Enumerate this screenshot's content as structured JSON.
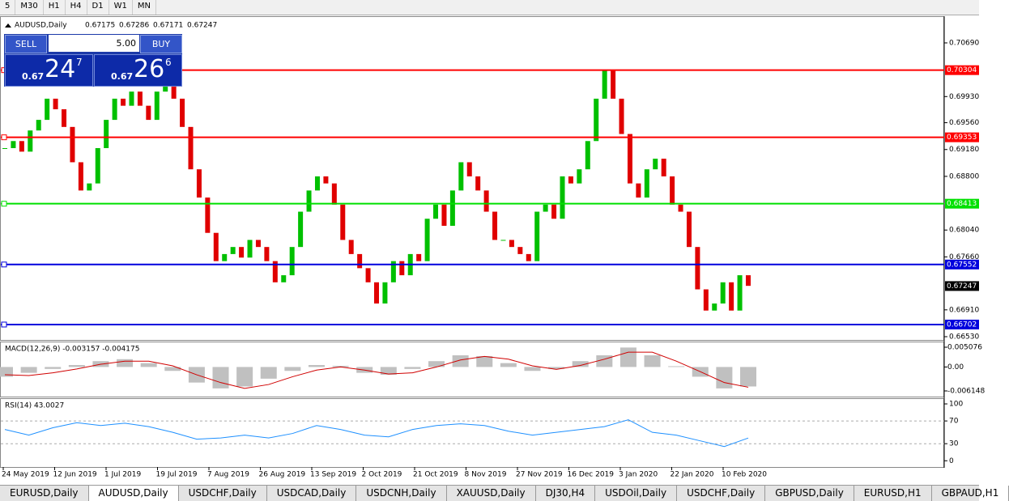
{
  "toolbar": {
    "timeframes": [
      "5",
      "M30",
      "H1",
      "H4",
      "D1",
      "W1",
      "MN"
    ]
  },
  "chart": {
    "symbol": "AUDUSD,Daily",
    "ohlc": [
      0.67175,
      0.67286,
      0.67171,
      0.67247
    ],
    "ylim": [
      0.66484,
      0.71068
    ],
    "ticks": [
      {
        "value": 0.7069,
        "label": "0.70690"
      },
      {
        "value": 0.6993,
        "label": "0.69930"
      },
      {
        "value": 0.6956,
        "label": "0.69560"
      },
      {
        "value": 0.6918,
        "label": "0.69180"
      },
      {
        "value": 0.688,
        "label": "0.68800"
      },
      {
        "value": 0.6804,
        "label": "0.68040"
      },
      {
        "value": 0.6766,
        "label": "0.67660"
      },
      {
        "value": 0.6691,
        "label": "0.66910"
      },
      {
        "value": 0.6653,
        "label": "0.66530"
      }
    ],
    "levels": [
      {
        "value": 0.70304,
        "color": "#ff0000"
      },
      {
        "value": 0.69353,
        "color": "#ff0000"
      },
      {
        "value": 0.68413,
        "color": "#00e000"
      },
      {
        "value": 0.67552,
        "color": "#0000dd"
      },
      {
        "value": 0.66702,
        "color": "#0000dd"
      }
    ],
    "current_price": 0.67247,
    "closes": [
      0.692,
      0.693,
      0.6915,
      0.6945,
      0.696,
      0.699,
      0.6975,
      0.695,
      0.69,
      0.686,
      0.687,
      0.692,
      0.696,
      0.699,
      0.698,
      0.7,
      0.698,
      0.696,
      0.7,
      0.701,
      0.699,
      0.695,
      0.689,
      0.685,
      0.68,
      0.676,
      0.677,
      0.678,
      0.6765,
      0.679,
      0.678,
      0.676,
      0.673,
      0.674,
      0.678,
      0.683,
      0.686,
      0.688,
      0.687,
      0.684,
      0.679,
      0.677,
      0.675,
      0.673,
      0.67,
      0.673,
      0.676,
      0.674,
      0.677,
      0.676,
      0.682,
      0.684,
      0.681,
      0.686,
      0.69,
      0.688,
      0.686,
      0.683,
      0.679,
      0.679,
      0.678,
      0.677,
      0.676,
      0.683,
      0.684,
      0.682,
      0.688,
      0.687,
      0.689,
      0.693,
      0.699,
      0.703,
      0.699,
      0.694,
      0.687,
      0.685,
      0.689,
      0.6905,
      0.688,
      0.684,
      0.683,
      0.678,
      0.672,
      0.669,
      0.67,
      0.673,
      0.669,
      0.674,
      0.6725
    ],
    "dates": [
      "24 May 2019",
      "12 Jun 2019",
      "1 Jul 2019",
      "19 Jul 2019",
      "7 Aug 2019",
      "26 Aug 2019",
      "13 Sep 2019",
      "2 Oct 2019",
      "21 Oct 2019",
      "8 Nov 2019",
      "27 Nov 2019",
      "16 Dec 2019",
      "3 Jan 2020",
      "22 Jan 2020",
      "10 Feb 2020"
    ]
  },
  "trade_panel": {
    "sell": "SELL",
    "lot": "5.00",
    "buy": "BUY",
    "bid": {
      "big": "0.67",
      "main": "24",
      "pip": "7"
    },
    "ask": {
      "big": "0.67",
      "main": "26",
      "pip": "6"
    }
  },
  "macd": {
    "label": "MACD(12,26,9) -0.003157 -0.004175",
    "ylim": [
      -0.007603,
      0.006531
    ],
    "ticks": [
      0.005076,
      {
        "value": 0,
        "label": "0.00"
      },
      -0.006148
    ],
    "histogram": [
      -0.0025,
      -0.0015,
      -0.0005,
      0.0005,
      0.0015,
      0.002,
      0.001,
      -0.001,
      -0.004,
      -0.0055,
      -0.005,
      -0.003,
      -0.001,
      0.0005,
      0.0003,
      -0.0015,
      -0.002,
      -0.0005,
      0.0015,
      0.003,
      0.0028,
      0.001,
      -0.001,
      -0.0005,
      0.0015,
      0.003,
      0.005,
      0.003,
      0.0002,
      -0.0025,
      -0.0055,
      -0.005
    ],
    "signal": [
      -0.002,
      -0.0022,
      -0.0015,
      -0.0005,
      0.0007,
      0.0015,
      0.0015,
      0.0003,
      -0.002,
      -0.004,
      -0.0055,
      -0.0045,
      -0.0025,
      -0.0008,
      0,
      -0.0008,
      -0.0018,
      -0.0015,
      0,
      0.0018,
      0.0027,
      0.002,
      0.0003,
      -0.0006,
      0.0004,
      0.002,
      0.0038,
      0.0038,
      0.0015,
      -0.0012,
      -0.004,
      -0.0052
    ]
  },
  "rsi": {
    "label": "RSI(14) 43.0027",
    "ylim": [
      -11,
      110
    ],
    "ticks": [
      100,
      70,
      30,
      0
    ],
    "levels": [
      70,
      30
    ],
    "values": [
      55,
      45,
      58,
      67,
      62,
      66,
      60,
      50,
      38,
      40,
      45,
      40,
      48,
      62,
      55,
      45,
      42,
      55,
      62,
      65,
      62,
      52,
      45,
      50,
      55,
      60,
      72,
      50,
      45,
      35,
      25,
      40
    ]
  },
  "tabs": [
    "EURUSD,Daily",
    "AUDUSD,Daily",
    "USDCHF,Daily",
    "USDCAD,Daily",
    "USDCNH,Daily",
    "XAUUSD,Daily",
    "DJ30,H4",
    "USDOil,Daily",
    "USDCHF,Daily",
    "GBPUSD,Daily",
    "EURUSD,H1",
    "GBPAUD,H1"
  ]
}
